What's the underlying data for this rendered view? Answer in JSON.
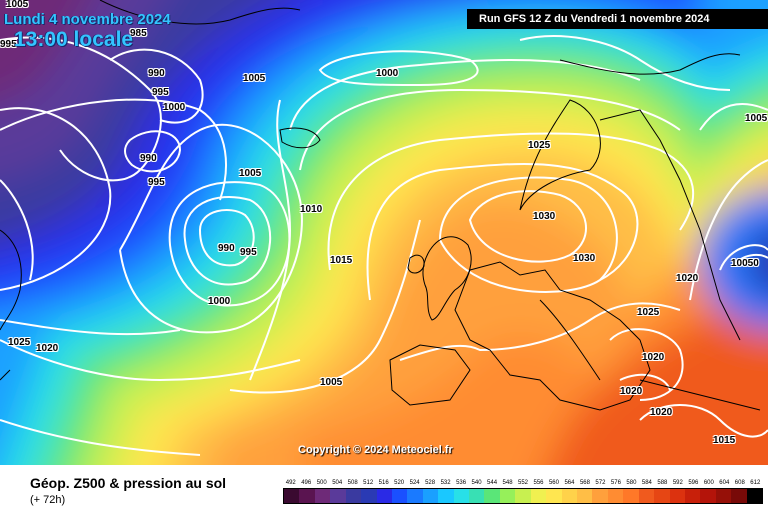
{
  "header": {
    "date_line1": "Lundi 4 novembre 2024",
    "date_line2": "13:00 locale",
    "run_info": "Run GFS 12 Z du Vendredi 1 novembre 2024"
  },
  "copyright": "Copyright © 2024 Meteociel.fr",
  "isobar_labels": [
    "1005",
    "985",
    "995",
    "990",
    "995",
    "1000",
    "1005",
    "990",
    "995",
    "1000",
    "1005",
    "990",
    "995",
    "1010",
    "1015",
    "1000",
    "1025",
    "1020",
    "1005",
    "1025",
    "1030",
    "1030",
    "1020",
    "1025",
    "1020",
    "1020",
    "1020",
    "1015",
    "1005",
    "10050"
  ],
  "footer": {
    "title": "Géop. Z500 & pression au sol",
    "subtitle": "(+ 72h)"
  },
  "legend": {
    "labels": [
      "492",
      "496",
      "500",
      "504",
      "508",
      "512",
      "516",
      "520",
      "524",
      "528",
      "532",
      "536",
      "540",
      "544",
      "548",
      "552",
      "556",
      "560",
      "564",
      "568",
      "572",
      "576",
      "580",
      "584",
      "588",
      "592",
      "596",
      "600",
      "604",
      "608",
      "612"
    ],
    "colors": [
      "#3a0a30",
      "#5a1450",
      "#6e2a78",
      "#5a3a9a",
      "#3a3aa0",
      "#2a3ab4",
      "#2a2ae6",
      "#1a50ff",
      "#1a7aff",
      "#1aa0ff",
      "#1ac8ff",
      "#28e0e8",
      "#38e0b4",
      "#5ae678",
      "#96f05a",
      "#c8f050",
      "#f0f050",
      "#ffe650",
      "#ffd24a",
      "#ffbe46",
      "#ffa03c",
      "#ff8c32",
      "#ff7828",
      "#f05a1e",
      "#e64614",
      "#dc320f",
      "#c8200a",
      "#b4140a",
      "#961008",
      "#780a08",
      "#000000"
    ]
  },
  "colors": {
    "background_cold": "#2a1a5a",
    "background_hot": "#ff7a28",
    "isobar": "#ffffff",
    "coastline": "#000000"
  }
}
